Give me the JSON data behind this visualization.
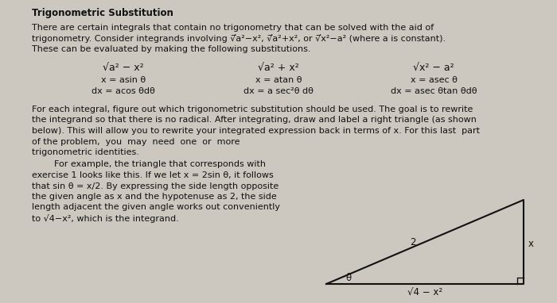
{
  "title": "Trigonometric Substitution",
  "bg_color": "#ccc8c0",
  "text_color": "#111111",
  "intro_line1": "There are certain integrals that contain no trigonometry that can be solved with the aid of",
  "intro_line2": "trigonometry. Consider integrands involving √̅a²−x², √̅a²+x², or √̅x²−a² (where a is constant).",
  "intro_line3": "These can be evaluated by making the following substitutions.",
  "col1_radical": "√a² − x²",
  "col1_sub1": "x = asin θ",
  "col1_sub2": "dx = acos θdθ",
  "col2_radical": "√a² + x²",
  "col2_sub1": "x = atan θ",
  "col2_sub2": "dx = a sec²θ dθ",
  "col3_radical": "√x² − a²",
  "col3_sub1": "x = asec θ",
  "col3_sub2": "dx = asec θtan θdθ",
  "body1_line1": "For each integral, figure out which trigonometric substitution should be used. The goal is to rewrite",
  "body1_line2": "the integrand so that there is no radical. After integrating, draw and label a right triangle (as shown",
  "body1_line3": "below). This will allow you to rewrite your integrated expression back in terms of x. For this last  part",
  "body1_line4": "of the problem,  you  may  need  one  or  more",
  "body1_line5": "trigonometric identities.",
  "body2_line1": "        For example, the triangle that corresponds with",
  "body2_line2": "exercise 1 looks like this. If we let x = 2sin θ, it follows",
  "body2_line3": "that sin θ = x/2. By expressing the side length opposite",
  "body2_line4": "the given angle as x and the hypotenuse as 2, the side",
  "body2_line5": "length adjacent the given angle works out conveniently",
  "body2_line6": "to √4−x², which is the integrand.",
  "tri_label_hyp": "2",
  "tri_label_opp": "x",
  "tri_label_adj": "√4 − x²",
  "tri_label_angle": "θ"
}
